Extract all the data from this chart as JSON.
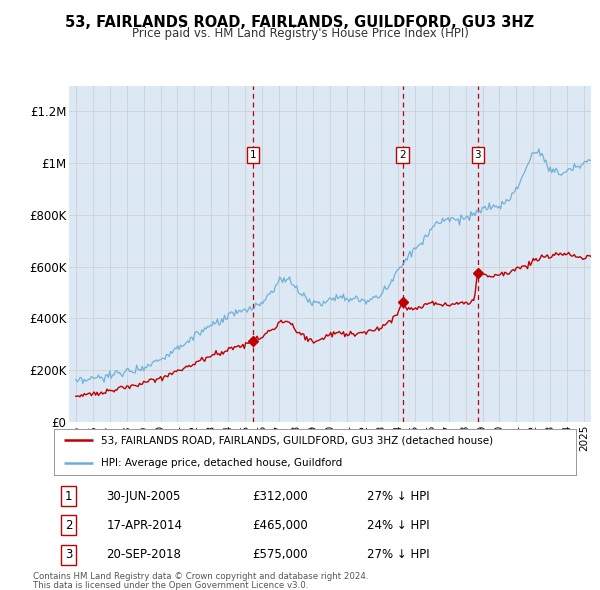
{
  "title": "53, FAIRLANDS ROAD, FAIRLANDS, GUILDFORD, GU3 3HZ",
  "subtitle": "Price paid vs. HM Land Registry's House Price Index (HPI)",
  "plot_bg_color": "#dce9f5",
  "hpi_color": "#6baed6",
  "price_color": "#c00000",
  "vline_color": "#c00000",
  "sale_points": [
    {
      "date_num": 2005.46,
      "price": 312000,
      "label": "1"
    },
    {
      "date_num": 2014.29,
      "price": 465000,
      "label": "2"
    },
    {
      "date_num": 2018.72,
      "price": 575000,
      "label": "3"
    }
  ],
  "vline_dates": [
    2005.46,
    2014.29,
    2018.72
  ],
  "ylim": [
    0,
    1300000
  ],
  "xlim": [
    1994.6,
    2025.4
  ],
  "yticks": [
    0,
    200000,
    400000,
    600000,
    800000,
    1000000,
    1200000
  ],
  "ytick_labels": [
    "£0",
    "£200K",
    "£400K",
    "£600K",
    "£800K",
    "£1M",
    "£1.2M"
  ],
  "legend_entries": [
    "53, FAIRLANDS ROAD, FAIRLANDS, GUILDFORD, GU3 3HZ (detached house)",
    "HPI: Average price, detached house, Guildford"
  ],
  "table_rows": [
    {
      "num": "1",
      "date": "30-JUN-2005",
      "price": "£312,000",
      "hpi": "27% ↓ HPI"
    },
    {
      "num": "2",
      "date": "17-APR-2014",
      "price": "£465,000",
      "hpi": "24% ↓ HPI"
    },
    {
      "num": "3",
      "date": "20-SEP-2018",
      "price": "£575,000",
      "hpi": "27% ↓ HPI"
    }
  ],
  "footnote1": "Contains HM Land Registry data © Crown copyright and database right 2024.",
  "footnote2": "This data is licensed under the Open Government Licence v3.0."
}
